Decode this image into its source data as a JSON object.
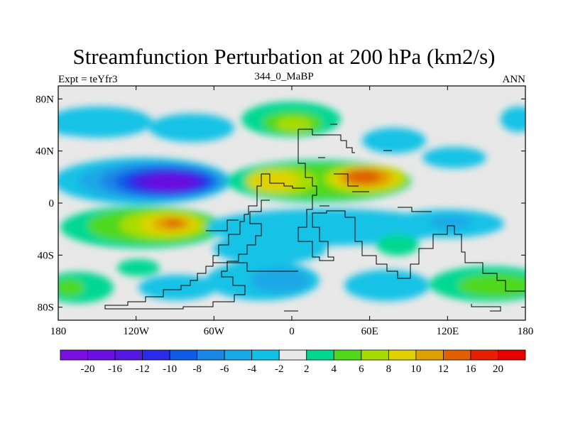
{
  "title": "Streamfunction Perturbation at 200 hPa (km2/s)",
  "subtitle": "344_0_MaBP",
  "left_label": "Expt = teYfr3",
  "right_label": "ANN",
  "lat_ticks": [
    {
      "value": 80,
      "label": "80N"
    },
    {
      "value": 40,
      "label": "40N"
    },
    {
      "value": 0,
      "label": "0"
    },
    {
      "value": -40,
      "label": "40S"
    },
    {
      "value": -80,
      "label": "80S"
    }
  ],
  "lon_ticks": [
    {
      "value": -180,
      "label": "180"
    },
    {
      "value": -120,
      "label": "120W"
    },
    {
      "value": -60,
      "label": "60W"
    },
    {
      "value": 0,
      "label": "0"
    },
    {
      "value": 60,
      "label": "60E"
    },
    {
      "value": 120,
      "label": "120E"
    },
    {
      "value": 180,
      "label": "180"
    }
  ],
  "colorbar": {
    "colors": [
      "#7a0fe0",
      "#6a10e0",
      "#5518e0",
      "#2a2ae8",
      "#0e5ce6",
      "#1a86e6",
      "#1aa8e6",
      "#12c2e6",
      "#e8e8e8",
      "#00d892",
      "#50d81a",
      "#a8dc00",
      "#e0d200",
      "#e0a000",
      "#e06000",
      "#e62000",
      "#e60000"
    ],
    "labels": [
      "-20",
      "-16",
      "-12",
      "-10",
      "-8",
      "-6",
      "-4",
      "-2",
      "2",
      "4",
      "6",
      "8",
      "10",
      "12",
      "16",
      "20"
    ]
  }
}
